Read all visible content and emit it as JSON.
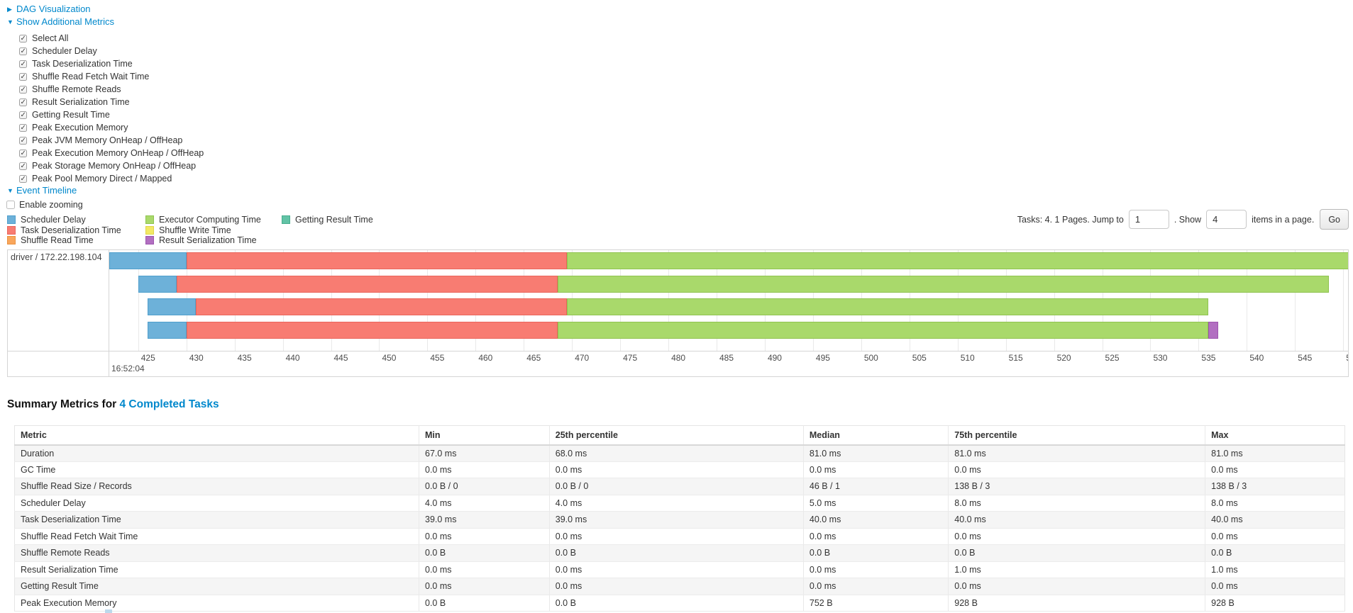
{
  "colors": {
    "link": "#0088cc",
    "scheduler_delay": {
      "fill": "#6DB1D9",
      "border": "#4F9FCC"
    },
    "task_deserialization": {
      "fill": "#F87C72",
      "border": "#EA655B"
    },
    "shuffle_read": {
      "fill": "#F9A65C",
      "border": "#EA9241"
    },
    "executor_computing": {
      "fill": "#A9D96B",
      "border": "#8FC350"
    },
    "shuffle_write": {
      "fill": "#F3E964",
      "border": "#DFD44A"
    },
    "result_serialization": {
      "fill": "#B26FC1",
      "border": "#9D55AE"
    },
    "getting_result": {
      "fill": "#62C3A6",
      "border": "#47AD8D"
    }
  },
  "sections": {
    "dag_label": "DAG Visualization",
    "metrics_label": "Show Additional Metrics",
    "timeline_label": "Event Timeline",
    "enable_zooming_label": "Enable zooming"
  },
  "metric_checkboxes": [
    {
      "label": "Select All",
      "checked": true
    },
    {
      "label": "Scheduler Delay",
      "checked": true
    },
    {
      "label": "Task Deserialization Time",
      "checked": true
    },
    {
      "label": "Shuffle Read Fetch Wait Time",
      "checked": true
    },
    {
      "label": "Shuffle Remote Reads",
      "checked": true
    },
    {
      "label": "Result Serialization Time",
      "checked": true
    },
    {
      "label": "Getting Result Time",
      "checked": true
    },
    {
      "label": "Peak Execution Memory",
      "checked": true
    },
    {
      "label": "Peak JVM Memory OnHeap / OffHeap",
      "checked": true
    },
    {
      "label": "Peak Execution Memory OnHeap / OffHeap",
      "checked": true
    },
    {
      "label": "Peak Storage Memory OnHeap / OffHeap",
      "checked": true
    },
    {
      "label": "Peak Pool Memory Direct / Mapped",
      "checked": true
    }
  ],
  "legend": {
    "columns": [
      [
        {
          "key": "scheduler_delay",
          "label": "Scheduler Delay"
        },
        {
          "key": "task_deserialization",
          "label": "Task Deserialization Time"
        },
        {
          "key": "shuffle_read",
          "label": "Shuffle Read Time"
        }
      ],
      [
        {
          "key": "executor_computing",
          "label": "Executor Computing Time"
        },
        {
          "key": "shuffle_write",
          "label": "Shuffle Write Time"
        },
        {
          "key": "result_serialization",
          "label": "Result Serialization Time"
        }
      ],
      [
        {
          "key": "getting_result",
          "label": "Getting Result Time"
        }
      ]
    ]
  },
  "pagination": {
    "prefix": "Tasks: 4. 1 Pages. Jump to",
    "jump_value": "1",
    "show_label": ". Show",
    "show_value": "4",
    "suffix": "items in a page.",
    "go_label": "Go"
  },
  "chart_data": {
    "type": "timeline",
    "group_label": "driver / 172.22.198.104",
    "axis": {
      "min": 422,
      "max": 550.5,
      "tick_start": 425,
      "tick_end": 550,
      "tick_step": 5,
      "start_time_label": "16:52:04"
    },
    "tasks": [
      {
        "name": "task-0",
        "segments": [
          {
            "key": "scheduler_delay",
            "start": 422,
            "end": 430
          },
          {
            "key": "task_deserialization",
            "start": 430,
            "end": 469.5
          },
          {
            "key": "executor_computing",
            "start": 469.5,
            "end": 551
          }
        ]
      },
      {
        "name": "task-1",
        "segments": [
          {
            "key": "scheduler_delay",
            "start": 425,
            "end": 429
          },
          {
            "key": "task_deserialization",
            "start": 429,
            "end": 468.5
          },
          {
            "key": "executor_computing",
            "start": 468.5,
            "end": 548.5
          }
        ]
      },
      {
        "name": "task-2",
        "segments": [
          {
            "key": "scheduler_delay",
            "start": 426,
            "end": 431
          },
          {
            "key": "task_deserialization",
            "start": 431,
            "end": 469.5
          },
          {
            "key": "executor_computing",
            "start": 469.5,
            "end": 536
          }
        ]
      },
      {
        "name": "task-3",
        "segments": [
          {
            "key": "scheduler_delay",
            "start": 426,
            "end": 430
          },
          {
            "key": "task_deserialization",
            "start": 430,
            "end": 468.5
          },
          {
            "key": "executor_computing",
            "start": 468.5,
            "end": 536
          },
          {
            "key": "result_serialization",
            "start": 536,
            "end": 537
          }
        ]
      }
    ]
  },
  "summary_table": {
    "title_prefix": "Summary Metrics for ",
    "title_link": "4 Completed Tasks",
    "columns": [
      "Metric",
      "Min",
      "25th percentile",
      "Median",
      "75th percentile",
      "Max"
    ],
    "col_widths": [
      "30.4%",
      "9.8%",
      "19.1%",
      "10.9%",
      "19.3%",
      "10.5%"
    ],
    "rows": [
      [
        "Duration",
        "67.0 ms",
        "68.0 ms",
        "81.0 ms",
        "81.0 ms",
        "81.0 ms"
      ],
      [
        "GC Time",
        "0.0 ms",
        "0.0 ms",
        "0.0 ms",
        "0.0 ms",
        "0.0 ms"
      ],
      [
        "Shuffle Read Size / Records",
        "0.0 B / 0",
        "0.0 B / 0",
        "46 B / 1",
        "138 B / 3",
        "138 B / 3"
      ],
      [
        "Scheduler Delay",
        "4.0 ms",
        "4.0 ms",
        "5.0 ms",
        "8.0 ms",
        "8.0 ms"
      ],
      [
        "Task Deserialization Time",
        "39.0 ms",
        "39.0 ms",
        "40.0 ms",
        "40.0 ms",
        "40.0 ms"
      ],
      [
        "Shuffle Read Fetch Wait Time",
        "0.0 ms",
        "0.0 ms",
        "0.0 ms",
        "0.0 ms",
        "0.0 ms"
      ],
      [
        "Shuffle Remote Reads",
        "0.0 B",
        "0.0 B",
        "0.0 B",
        "0.0 B",
        "0.0 B"
      ],
      [
        "Result Serialization Time",
        "0.0 ms",
        "0.0 ms",
        "0.0 ms",
        "1.0 ms",
        "1.0 ms"
      ],
      [
        "Getting Result Time",
        "0.0 ms",
        "0.0 ms",
        "0.0 ms",
        "0.0 ms",
        "0.0 ms"
      ],
      [
        "Peak Execution Memory",
        "0.0 B",
        "0.0 B",
        "752 B",
        "928 B",
        "928 B"
      ]
    ]
  }
}
